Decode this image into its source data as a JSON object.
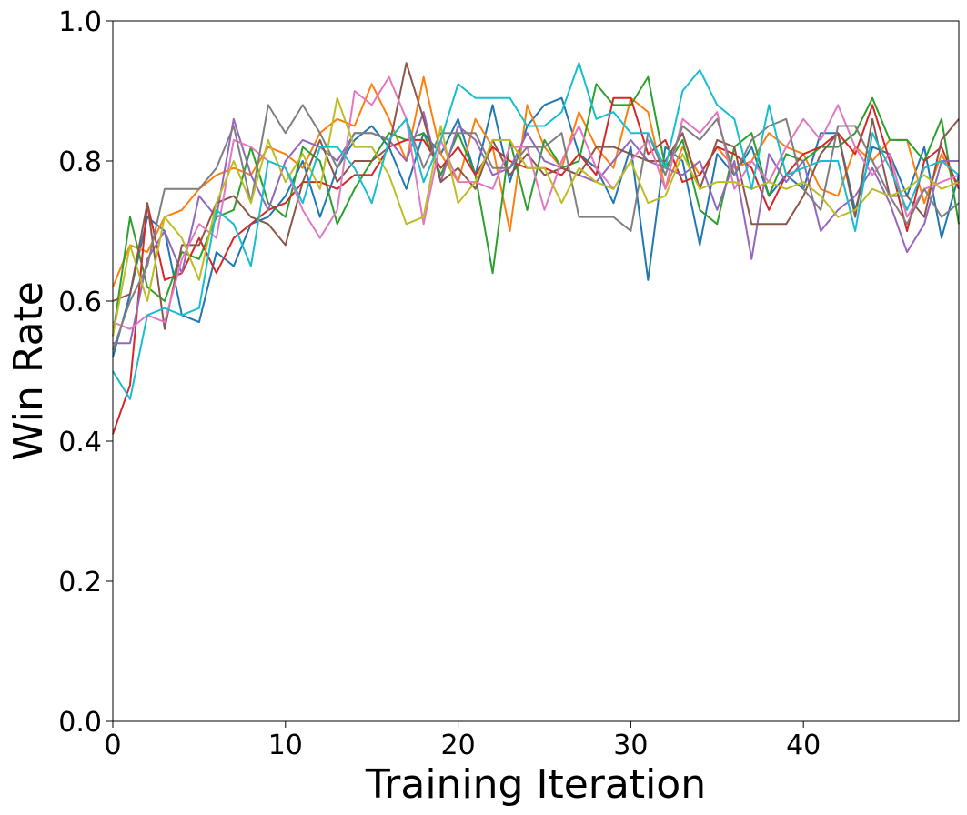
{
  "chart_data": {
    "type": "line",
    "title": "",
    "xlabel": "Training Iteration",
    "ylabel": "Win Rate",
    "xlim": [
      0,
      49
    ],
    "ylim": [
      0.0,
      1.0
    ],
    "x_ticks": [
      0,
      10,
      20,
      30,
      40
    ],
    "x_tick_labels": [
      "0",
      "10",
      "20",
      "30",
      "40"
    ],
    "y_ticks": [
      0.0,
      0.2,
      0.4,
      0.6,
      0.8,
      1.0
    ],
    "y_tick_labels": [
      "0.0",
      "0.2",
      "0.4",
      "0.6",
      "0.8",
      "1.0"
    ],
    "grid": false,
    "legend": "none",
    "x": [
      0,
      1,
      2,
      3,
      4,
      5,
      6,
      7,
      8,
      9,
      10,
      11,
      12,
      13,
      14,
      15,
      16,
      17,
      18,
      19,
      20,
      21,
      22,
      23,
      24,
      25,
      26,
      27,
      28,
      29,
      30,
      31,
      32,
      33,
      34,
      35,
      36,
      37,
      38,
      39,
      40,
      41,
      42,
      43,
      44,
      45,
      46,
      47,
      48,
      49
    ],
    "series": [
      {
        "color": "#1f77b4",
        "values": [
          0.52,
          0.61,
          0.72,
          0.7,
          0.58,
          0.57,
          0.67,
          0.65,
          0.71,
          0.72,
          0.75,
          0.8,
          0.72,
          0.79,
          0.83,
          0.85,
          0.82,
          0.76,
          0.84,
          0.81,
          0.86,
          0.78,
          0.88,
          0.77,
          0.85,
          0.88,
          0.89,
          0.81,
          0.79,
          0.74,
          0.82,
          0.63,
          0.82,
          0.8,
          0.68,
          0.81,
          0.78,
          0.82,
          0.75,
          0.78,
          0.76,
          0.84,
          0.84,
          0.73,
          0.82,
          0.81,
          0.75,
          0.82,
          0.69,
          0.78
        ]
      },
      {
        "color": "#ff7f0e",
        "values": [
          0.62,
          0.68,
          0.67,
          0.72,
          0.73,
          0.76,
          0.78,
          0.79,
          0.78,
          0.82,
          0.81,
          0.79,
          0.84,
          0.86,
          0.85,
          0.91,
          0.86,
          0.8,
          0.92,
          0.81,
          0.77,
          0.86,
          0.82,
          0.7,
          0.88,
          0.82,
          0.79,
          0.87,
          0.82,
          0.79,
          0.89,
          0.87,
          0.76,
          0.82,
          0.78,
          0.82,
          0.79,
          0.8,
          0.84,
          0.82,
          0.81,
          0.76,
          0.75,
          0.82,
          0.8,
          0.83,
          0.83,
          0.74,
          0.81,
          0.76
        ]
      },
      {
        "color": "#2ca02c",
        "values": [
          0.55,
          0.72,
          0.62,
          0.6,
          0.67,
          0.66,
          0.72,
          0.73,
          0.82,
          0.74,
          0.72,
          0.82,
          0.8,
          0.71,
          0.76,
          0.8,
          0.84,
          0.83,
          0.84,
          0.78,
          0.84,
          0.78,
          0.64,
          0.83,
          0.73,
          0.83,
          0.79,
          0.8,
          0.91,
          0.88,
          0.88,
          0.92,
          0.79,
          0.83,
          0.73,
          0.71,
          0.82,
          0.84,
          0.75,
          0.81,
          0.8,
          0.82,
          0.82,
          0.84,
          0.89,
          0.83,
          0.83,
          0.8,
          0.86,
          0.71
        ]
      },
      {
        "color": "#d62728",
        "values": [
          0.41,
          0.48,
          0.74,
          0.63,
          0.64,
          0.69,
          0.64,
          0.69,
          0.71,
          0.73,
          0.74,
          0.77,
          0.77,
          0.76,
          0.78,
          0.78,
          0.82,
          0.83,
          0.83,
          0.79,
          0.82,
          0.78,
          0.82,
          0.8,
          0.79,
          0.79,
          0.78,
          0.81,
          0.78,
          0.89,
          0.89,
          0.81,
          0.83,
          0.77,
          0.78,
          0.82,
          0.81,
          0.79,
          0.73,
          0.78,
          0.81,
          0.82,
          0.84,
          0.81,
          0.88,
          0.8,
          0.7,
          0.8,
          0.82,
          0.76
        ]
      },
      {
        "color": "#9467bd",
        "values": [
          0.54,
          0.54,
          0.66,
          0.7,
          0.64,
          0.75,
          0.72,
          0.86,
          0.78,
          0.73,
          0.8,
          0.83,
          0.82,
          0.8,
          0.84,
          0.84,
          0.83,
          0.8,
          0.87,
          0.77,
          0.85,
          0.83,
          0.78,
          0.79,
          0.84,
          0.8,
          0.79,
          0.78,
          0.77,
          0.8,
          0.83,
          0.8,
          0.79,
          0.78,
          0.8,
          0.73,
          0.8,
          0.66,
          0.81,
          0.77,
          0.8,
          0.7,
          0.73,
          0.75,
          0.79,
          0.74,
          0.67,
          0.71,
          0.8,
          0.8
        ]
      },
      {
        "color": "#8c564b",
        "values": [
          0.6,
          0.61,
          0.74,
          0.56,
          0.68,
          0.68,
          0.74,
          0.75,
          0.72,
          0.71,
          0.68,
          0.77,
          0.83,
          0.77,
          0.8,
          0.8,
          0.82,
          0.94,
          0.86,
          0.77,
          0.79,
          0.76,
          0.83,
          0.78,
          0.81,
          0.78,
          0.79,
          0.78,
          0.82,
          0.82,
          0.81,
          0.8,
          0.8,
          0.84,
          0.76,
          0.83,
          0.82,
          0.71,
          0.71,
          0.71,
          0.75,
          0.81,
          0.84,
          0.72,
          0.86,
          0.75,
          0.75,
          0.72,
          0.83,
          0.86
        ]
      },
      {
        "color": "#e377c2",
        "values": [
          0.57,
          0.56,
          0.58,
          0.57,
          0.66,
          0.71,
          0.69,
          0.83,
          0.82,
          0.8,
          0.79,
          0.73,
          0.69,
          0.73,
          0.9,
          0.88,
          0.92,
          0.86,
          0.71,
          0.83,
          0.77,
          0.77,
          0.76,
          0.82,
          0.82,
          0.73,
          0.8,
          0.85,
          0.79,
          0.76,
          0.8,
          0.83,
          0.76,
          0.86,
          0.84,
          0.87,
          0.76,
          0.8,
          0.77,
          0.82,
          0.86,
          0.83,
          0.88,
          0.82,
          0.78,
          0.81,
          0.72,
          0.76,
          0.77,
          0.78
        ]
      },
      {
        "color": "#7f7f7f",
        "values": [
          0.53,
          0.6,
          0.65,
          0.76,
          0.76,
          0.76,
          0.79,
          0.85,
          0.74,
          0.88,
          0.84,
          0.88,
          0.84,
          0.79,
          0.84,
          0.84,
          0.83,
          0.86,
          0.79,
          0.84,
          0.84,
          0.84,
          0.79,
          0.79,
          0.82,
          0.82,
          0.84,
          0.72,
          0.72,
          0.72,
          0.7,
          0.84,
          0.78,
          0.85,
          0.83,
          0.86,
          0.78,
          0.83,
          0.85,
          0.86,
          0.76,
          0.73,
          0.85,
          0.85,
          0.8,
          0.75,
          0.71,
          0.76,
          0.72,
          0.74
        ]
      },
      {
        "color": "#bcbd22",
        "values": [
          0.55,
          0.68,
          0.6,
          0.72,
          0.69,
          0.63,
          0.74,
          0.8,
          0.74,
          0.83,
          0.77,
          0.81,
          0.76,
          0.89,
          0.82,
          0.82,
          0.78,
          0.71,
          0.72,
          0.85,
          0.74,
          0.77,
          0.83,
          0.83,
          0.79,
          0.79,
          0.74,
          0.79,
          0.77,
          0.76,
          0.8,
          0.74,
          0.75,
          0.81,
          0.76,
          0.77,
          0.77,
          0.76,
          0.77,
          0.76,
          0.77,
          0.75,
          0.72,
          0.73,
          0.76,
          0.75,
          0.76,
          0.78,
          0.76,
          0.77
        ]
      },
      {
        "color": "#17becf",
        "values": [
          0.5,
          0.46,
          0.58,
          0.59,
          0.58,
          0.59,
          0.73,
          0.71,
          0.65,
          0.8,
          0.79,
          0.74,
          0.82,
          0.82,
          0.79,
          0.74,
          0.83,
          0.86,
          0.77,
          0.83,
          0.91,
          0.89,
          0.89,
          0.89,
          0.85,
          0.85,
          0.87,
          0.94,
          0.86,
          0.87,
          0.84,
          0.84,
          0.79,
          0.9,
          0.93,
          0.88,
          0.86,
          0.76,
          0.88,
          0.78,
          0.79,
          0.8,
          0.8,
          0.7,
          0.84,
          0.79,
          0.73,
          0.79,
          0.8,
          0.78
        ]
      }
    ]
  }
}
